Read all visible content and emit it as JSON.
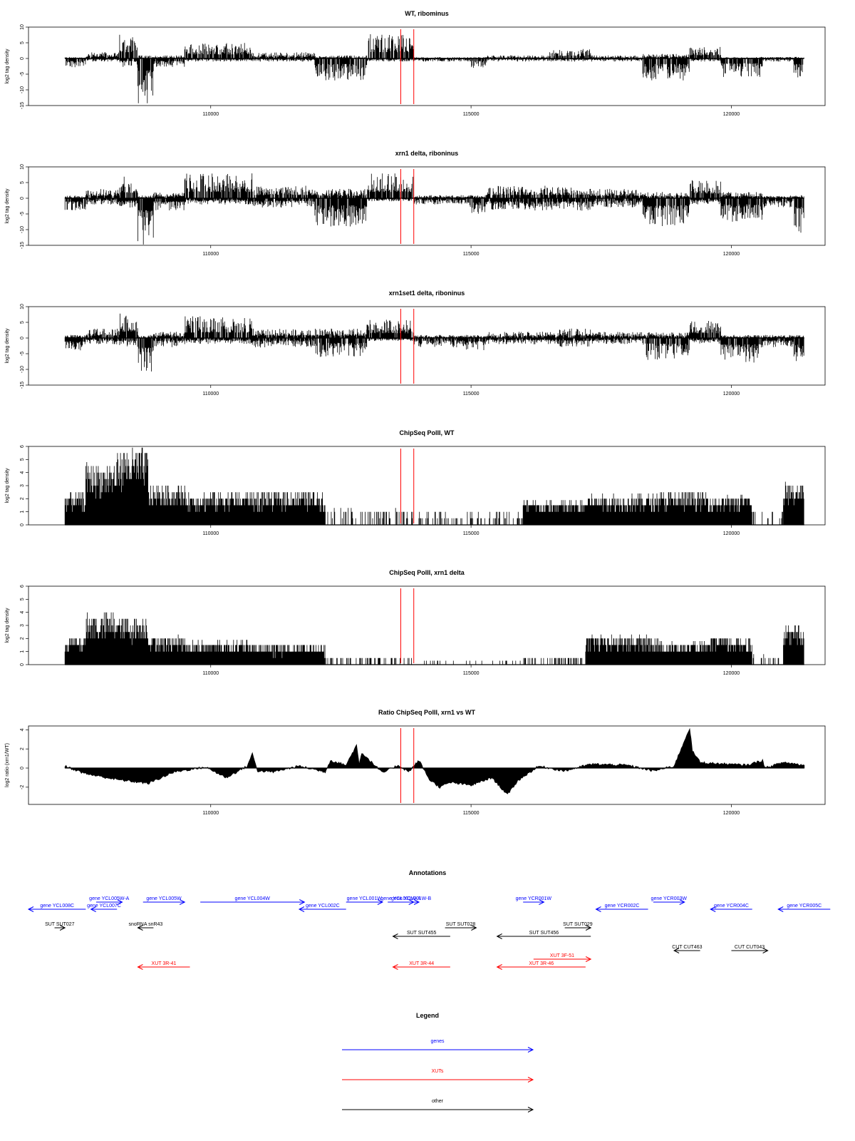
{
  "chart_data": [
    {
      "type": "bar",
      "title": "WT, ribominus",
      "ylabel": "log2 tag density",
      "xlim": [
        106500,
        121800
      ],
      "ylim": [
        -15,
        10
      ],
      "yticks": [
        10,
        5,
        0,
        -5,
        -10,
        -15
      ],
      "xticks": [
        110000,
        115000,
        120000
      ],
      "track_start": 107200,
      "track_end": 121400,
      "reference_lines": [
        113650,
        113900
      ],
      "segments": [
        {
          "start": 107200,
          "end": 107600,
          "up": 0.5,
          "down": -3
        },
        {
          "start": 107600,
          "end": 108250,
          "up": 2,
          "down": -1
        },
        {
          "start": 108250,
          "end": 108600,
          "up": 8,
          "down": -3
        },
        {
          "start": 108600,
          "end": 108900,
          "up": 1,
          "down": -15
        },
        {
          "start": 108900,
          "end": 109500,
          "up": 1,
          "down": -3
        },
        {
          "start": 109500,
          "end": 110800,
          "up": 5,
          "down": -1
        },
        {
          "start": 110800,
          "end": 112000,
          "up": 2,
          "down": -1
        },
        {
          "start": 112000,
          "end": 113000,
          "up": 1,
          "down": -7
        },
        {
          "start": 113000,
          "end": 113900,
          "up": 8,
          "down": -1
        },
        {
          "start": 113900,
          "end": 115000,
          "up": 0.5,
          "down": -1
        },
        {
          "start": 115000,
          "end": 115300,
          "up": 0.5,
          "down": -3
        },
        {
          "start": 115300,
          "end": 116500,
          "up": 1,
          "down": -1
        },
        {
          "start": 116500,
          "end": 117300,
          "up": 3,
          "down": -1
        },
        {
          "start": 117300,
          "end": 118300,
          "up": 1,
          "down": -1
        },
        {
          "start": 118300,
          "end": 119200,
          "up": 1.5,
          "down": -7
        },
        {
          "start": 119200,
          "end": 119800,
          "up": 4,
          "down": -1
        },
        {
          "start": 119800,
          "end": 120600,
          "up": 0.5,
          "down": -6
        },
        {
          "start": 120600,
          "end": 121200,
          "up": 0.5,
          "down": -1
        },
        {
          "start": 121200,
          "end": 121400,
          "up": 0.5,
          "down": -7
        }
      ]
    },
    {
      "type": "bar",
      "title": "xrn1 delta, riboninus",
      "ylabel": "log2 tag density",
      "xlim": [
        106500,
        121800
      ],
      "ylim": [
        -15,
        10
      ],
      "yticks": [
        10,
        5,
        0,
        -5,
        -10,
        -15
      ],
      "xticks": [
        110000,
        115000,
        120000
      ],
      "track_start": 107200,
      "track_end": 121400,
      "reference_lines": [
        113650,
        113900
      ],
      "segments": [
        {
          "start": 107200,
          "end": 107600,
          "up": 1,
          "down": -4
        },
        {
          "start": 107600,
          "end": 108250,
          "up": 3,
          "down": -2
        },
        {
          "start": 108250,
          "end": 108600,
          "up": 7,
          "down": -3
        },
        {
          "start": 108600,
          "end": 108900,
          "up": 1,
          "down": -15
        },
        {
          "start": 108900,
          "end": 109500,
          "up": 2,
          "down": -4
        },
        {
          "start": 109500,
          "end": 110800,
          "up": 8,
          "down": -2
        },
        {
          "start": 110800,
          "end": 112000,
          "up": 4,
          "down": -3
        },
        {
          "start": 112000,
          "end": 113000,
          "up": 3,
          "down": -9
        },
        {
          "start": 113000,
          "end": 113900,
          "up": 8,
          "down": -1
        },
        {
          "start": 113900,
          "end": 114900,
          "up": 1,
          "down": -2
        },
        {
          "start": 114900,
          "end": 115300,
          "up": 1,
          "down": -5
        },
        {
          "start": 115300,
          "end": 116700,
          "up": 4,
          "down": -4
        },
        {
          "start": 116700,
          "end": 117300,
          "up": 4,
          "down": -4
        },
        {
          "start": 117300,
          "end": 118300,
          "up": 3,
          "down": -3
        },
        {
          "start": 118300,
          "end": 119200,
          "up": 2,
          "down": -9
        },
        {
          "start": 119200,
          "end": 119800,
          "up": 6,
          "down": -2
        },
        {
          "start": 119800,
          "end": 120600,
          "up": 2,
          "down": -8
        },
        {
          "start": 120600,
          "end": 121200,
          "up": 1,
          "down": -3
        },
        {
          "start": 121200,
          "end": 121400,
          "up": 1,
          "down": -11
        }
      ]
    },
    {
      "type": "bar",
      "title": "xrn1set1 delta, riboninus",
      "ylabel": "log2 tag density",
      "xlim": [
        106500,
        121800
      ],
      "ylim": [
        -15,
        10
      ],
      "yticks": [
        10,
        5,
        0,
        -5,
        -10,
        -15
      ],
      "xticks": [
        110000,
        115000,
        120000
      ],
      "track_start": 107200,
      "track_end": 121400,
      "reference_lines": [
        113650,
        113900
      ],
      "segments": [
        {
          "start": 107200,
          "end": 107600,
          "up": 1,
          "down": -4
        },
        {
          "start": 107600,
          "end": 108250,
          "up": 3,
          "down": -2
        },
        {
          "start": 108250,
          "end": 108600,
          "up": 8,
          "down": -3
        },
        {
          "start": 108600,
          "end": 108900,
          "up": 1,
          "down": -12
        },
        {
          "start": 108900,
          "end": 109500,
          "up": 2,
          "down": -3
        },
        {
          "start": 109500,
          "end": 110800,
          "up": 7,
          "down": -2
        },
        {
          "start": 110800,
          "end": 112000,
          "up": 3,
          "down": -3
        },
        {
          "start": 112000,
          "end": 113000,
          "up": 3,
          "down": -6
        },
        {
          "start": 113000,
          "end": 113900,
          "up": 6,
          "down": -1
        },
        {
          "start": 113900,
          "end": 114900,
          "up": 1,
          "down": -3
        },
        {
          "start": 114900,
          "end": 115300,
          "up": 1,
          "down": -4
        },
        {
          "start": 115300,
          "end": 116700,
          "up": 2,
          "down": -2
        },
        {
          "start": 116700,
          "end": 117300,
          "up": 3,
          "down": -3
        },
        {
          "start": 117300,
          "end": 118300,
          "up": 2,
          "down": -2
        },
        {
          "start": 118300,
          "end": 119200,
          "up": 2,
          "down": -7
        },
        {
          "start": 119200,
          "end": 119800,
          "up": 6,
          "down": -2
        },
        {
          "start": 119800,
          "end": 120600,
          "up": 1,
          "down": -8
        },
        {
          "start": 120600,
          "end": 121200,
          "up": 1,
          "down": -3
        },
        {
          "start": 121200,
          "end": 121400,
          "up": 1,
          "down": -8
        }
      ]
    },
    {
      "type": "bar",
      "title": "ChipSeq PolII, WT",
      "ylabel": "log2 tag density",
      "xlim": [
        106500,
        121800
      ],
      "ylim": [
        0,
        6
      ],
      "yticks": [
        0,
        1,
        2,
        3,
        4,
        5,
        6
      ],
      "xticks": [
        110000,
        115000,
        120000
      ],
      "track_start": 107200,
      "track_end": 121400,
      "reference_lines": [
        113650,
        113900
      ],
      "segments": [
        {
          "start": 107200,
          "end": 107600,
          "up": 2.5
        },
        {
          "start": 107600,
          "end": 108200,
          "up": 4.8
        },
        {
          "start": 108200,
          "end": 108800,
          "up": 5.9
        },
        {
          "start": 108800,
          "end": 109500,
          "up": 3
        },
        {
          "start": 109500,
          "end": 110700,
          "up": 2.5
        },
        {
          "start": 110700,
          "end": 112200,
          "up": 2.6
        },
        {
          "start": 112200,
          "end": 114000,
          "up": 1.3
        },
        {
          "start": 114000,
          "end": 116000,
          "up": 1
        },
        {
          "start": 116000,
          "end": 117200,
          "up": 1.9
        },
        {
          "start": 117200,
          "end": 118600,
          "up": 2.4
        },
        {
          "start": 118600,
          "end": 119600,
          "up": 2.5
        },
        {
          "start": 119600,
          "end": 120400,
          "up": 2.3
        },
        {
          "start": 120400,
          "end": 121000,
          "up": 1.2
        },
        {
          "start": 121000,
          "end": 121400,
          "up": 3.3
        }
      ]
    },
    {
      "type": "bar",
      "title": "ChipSeq PolII, xrn1 delta",
      "ylabel": "log2 tag density",
      "xlim": [
        106500,
        121800
      ],
      "ylim": [
        0,
        6
      ],
      "yticks": [
        0,
        1,
        2,
        3,
        4,
        5,
        6
      ],
      "xticks": [
        110000,
        115000,
        120000
      ],
      "track_start": 107200,
      "track_end": 121400,
      "reference_lines": [
        113650,
        113900
      ],
      "segments": [
        {
          "start": 107200,
          "end": 107600,
          "up": 2.2
        },
        {
          "start": 107600,
          "end": 108200,
          "up": 4
        },
        {
          "start": 108200,
          "end": 108800,
          "up": 3.8
        },
        {
          "start": 108800,
          "end": 109500,
          "up": 2.3
        },
        {
          "start": 109500,
          "end": 110700,
          "up": 1.9
        },
        {
          "start": 110700,
          "end": 112200,
          "up": 1.6
        },
        {
          "start": 112200,
          "end": 114000,
          "up": 0.6
        },
        {
          "start": 114000,
          "end": 116000,
          "up": 0.3
        },
        {
          "start": 116000,
          "end": 117200,
          "up": 0.6
        },
        {
          "start": 117200,
          "end": 118600,
          "up": 2.3
        },
        {
          "start": 118600,
          "end": 119600,
          "up": 1.8
        },
        {
          "start": 119600,
          "end": 120400,
          "up": 2.2
        },
        {
          "start": 120400,
          "end": 121000,
          "up": 0.8
        },
        {
          "start": 121000,
          "end": 121400,
          "up": 3
        }
      ]
    },
    {
      "type": "area",
      "title": "Ratio ChipSeq PolII, xrn1 vs WT",
      "ylabel": "log2 ratio (xrn1/WT)",
      "xlim": [
        106500,
        121800
      ],
      "ylim": [
        -3.8,
        4.4
      ],
      "yticks": [
        4,
        2,
        0,
        -2
      ],
      "xticks": [
        110000,
        115000,
        120000
      ],
      "reference_lines": [
        113650,
        113900
      ],
      "x": [
        107200,
        107600,
        108200,
        108800,
        109300,
        109900,
        110300,
        110700,
        110800,
        110900,
        111200,
        111700,
        112200,
        112300,
        112600,
        112800,
        112850,
        112900,
        113300,
        113600,
        113800,
        114000,
        114200,
        114400,
        114600,
        115000,
        115400,
        115700,
        115900,
        116300,
        116800,
        117300,
        118000,
        118500,
        118900,
        119200,
        119250,
        119400,
        119600,
        120300,
        120600,
        120650,
        121000,
        121400
      ],
      "y": [
        0.2,
        -0.6,
        -1.2,
        -1.6,
        -0.4,
        0.1,
        -1.0,
        0.2,
        1.5,
        -0.3,
        -0.4,
        0.2,
        -0.4,
        0.8,
        0.3,
        2.4,
        0.4,
        1.6,
        -0.5,
        0.3,
        -0.4,
        0.8,
        -1.2,
        -2.0,
        -1.5,
        -1.8,
        -1.0,
        -2.8,
        -1.3,
        0.2,
        -0.3,
        0.4,
        0.3,
        -0.3,
        0.2,
        4.2,
        1.8,
        0.6,
        0.5,
        0.3,
        0.8,
        0.0,
        0.6,
        0.3
      ]
    }
  ],
  "annotations": {
    "title": "Annotations",
    "items": [
      {
        "kind": "gene",
        "label": "gene YCL008C",
        "start": 106500,
        "end": 107600,
        "strand": "-",
        "row": 1
      },
      {
        "kind": "gene",
        "label": "gene YCL005W-A",
        "start": 107800,
        "end": 108300,
        "strand": "+",
        "row": 0
      },
      {
        "kind": "gene",
        "label": "gene YCL007C",
        "start": 107700,
        "end": 108200,
        "strand": "-",
        "row": 1
      },
      {
        "kind": "gene",
        "label": "gene YCL005W",
        "start": 108700,
        "end": 109500,
        "strand": "+",
        "row": 0
      },
      {
        "kind": "gene",
        "label": "gene YCL004W",
        "start": 109800,
        "end": 111800,
        "strand": "+",
        "row": 0
      },
      {
        "kind": "gene",
        "label": "gene YCL002C",
        "start": 111700,
        "end": 112600,
        "strand": "-",
        "row": 1
      },
      {
        "kind": "gene",
        "label": "gene YCL001W",
        "start": 112600,
        "end": 113300,
        "strand": "+",
        "row": 0
      },
      {
        "kind": "gene",
        "label": "gene YCL001W-A",
        "start": 113400,
        "end": 113900,
        "strand": "+",
        "row": 0
      },
      {
        "kind": "gene",
        "label": "gene YCL001W-B",
        "start": 113700,
        "end": 114000,
        "strand": "+",
        "row": 0
      },
      {
        "kind": "gene",
        "label": "gene YCR001W",
        "start": 116000,
        "end": 116400,
        "strand": "+",
        "row": 0
      },
      {
        "kind": "gene",
        "label": "gene YCR002C",
        "start": 117400,
        "end": 118400,
        "strand": "-",
        "row": 1
      },
      {
        "kind": "gene",
        "label": "gene YCR003W",
        "start": 118500,
        "end": 119100,
        "strand": "+",
        "row": 0
      },
      {
        "kind": "gene",
        "label": "gene YCR004C",
        "start": 119600,
        "end": 120400,
        "strand": "-",
        "row": 1
      },
      {
        "kind": "gene",
        "label": "gene YCR005C",
        "start": 120900,
        "end": 121900,
        "strand": "-",
        "row": 1
      },
      {
        "kind": "other",
        "label": "SUT SUT027",
        "start": 107000,
        "end": 107200,
        "strand": "+",
        "row": 2
      },
      {
        "kind": "other",
        "label": "snoRNA snR43",
        "start": 108600,
        "end": 108900,
        "strand": "-",
        "row": 2
      },
      {
        "kind": "other",
        "label": "SUT SUT455",
        "start": 113500,
        "end": 114600,
        "strand": "-",
        "row": 3
      },
      {
        "kind": "other",
        "label": "SUT SUT028",
        "start": 114500,
        "end": 115100,
        "strand": "+",
        "row": 2
      },
      {
        "kind": "other",
        "label": "SUT SUT029",
        "start": 116800,
        "end": 117300,
        "strand": "+",
        "row": 2
      },
      {
        "kind": "other",
        "label": "SUT SUT456",
        "start": 115500,
        "end": 117300,
        "strand": "-",
        "row": 3
      },
      {
        "kind": "other",
        "label": "CUT CUT463",
        "start": 118900,
        "end": 119400,
        "strand": "-",
        "row": 4
      },
      {
        "kind": "other",
        "label": "CUT CUT043",
        "start": 120000,
        "end": 120700,
        "strand": "+",
        "row": 4
      },
      {
        "kind": "xut",
        "label": "XUT 3R-41",
        "start": 108600,
        "end": 109600,
        "strand": "-",
        "row": 6
      },
      {
        "kind": "xut",
        "label": "XUT 3R-44",
        "start": 113500,
        "end": 114600,
        "strand": "-",
        "row": 6
      },
      {
        "kind": "xut",
        "label": "XUT 3R-46",
        "start": 115500,
        "end": 117200,
        "strand": "-",
        "row": 6
      },
      {
        "kind": "xut",
        "label": "XUT 3F-51",
        "start": 116200,
        "end": 117300,
        "strand": "+",
        "row": 5
      }
    ]
  },
  "legend": {
    "title": "Legend",
    "entries": [
      {
        "label": "genes",
        "color": "#0000ff"
      },
      {
        "label": "XUTs",
        "color": "#ff0000"
      },
      {
        "label": "other",
        "color": "#000000"
      }
    ]
  },
  "colors": {
    "gene": "#0000ff",
    "xut": "#ff0000",
    "other": "#000000",
    "reference_line": "#ff0000",
    "signal": "#000000"
  }
}
